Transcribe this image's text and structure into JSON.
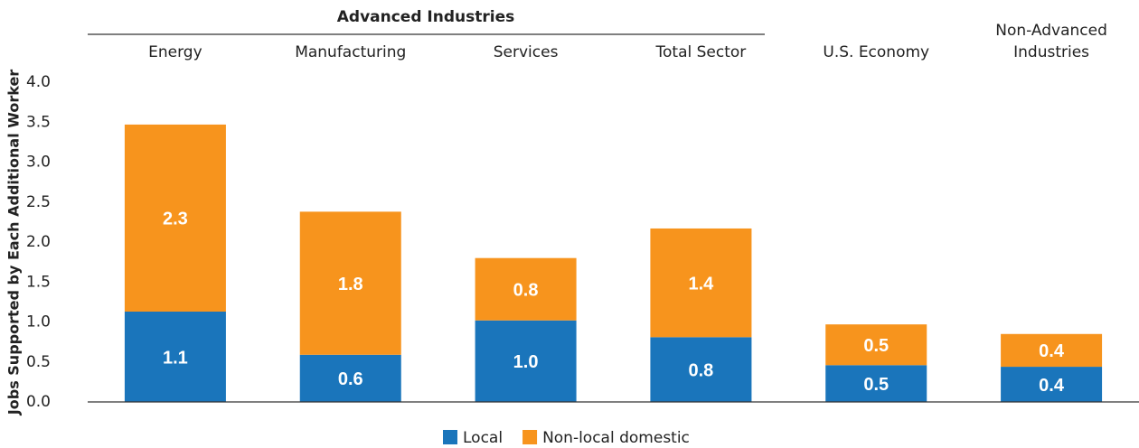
{
  "chart_data": {
    "type": "stacked_bar",
    "group_label": "Advanced Industries",
    "y_label": "Jobs Supported by Each Additional Worker",
    "categories": [
      "Energy",
      "Manufacturing",
      "Services",
      "Total Sector",
      "U.S. Economy",
      "Non-Advanced Industries"
    ],
    "series": [
      {
        "name": "Local",
        "color": "#1a75bb",
        "values": [
          1.13,
          0.59,
          1.02,
          0.81,
          0.46,
          0.44
        ],
        "value_labels": [
          "1.1",
          "0.6",
          "1.0",
          "0.8",
          "0.5",
          "0.4"
        ]
      },
      {
        "name": "Non-local domestic",
        "color": "#f7941d",
        "values": [
          2.34,
          1.79,
          0.78,
          1.36,
          0.51,
          0.41
        ],
        "value_labels": [
          "2.3",
          "1.8",
          "0.8",
          "1.4",
          "0.5",
          "0.4"
        ]
      }
    ],
    "ylim": [
      0,
      4
    ],
    "yticks": [
      {
        "value": 0,
        "label": "0.0"
      },
      {
        "value": 0.5,
        "label": "0.5"
      },
      {
        "value": 1,
        "label": "1.0"
      },
      {
        "value": 1.5,
        "label": "1.5"
      },
      {
        "value": 2,
        "label": "2.0"
      },
      {
        "value": 2.5,
        "label": "2.5"
      },
      {
        "value": 3,
        "label": "3.0"
      },
      {
        "value": 3.5,
        "label": "3.5"
      },
      {
        "value": 4,
        "label": "4.0"
      }
    ],
    "legend": "bottom"
  }
}
